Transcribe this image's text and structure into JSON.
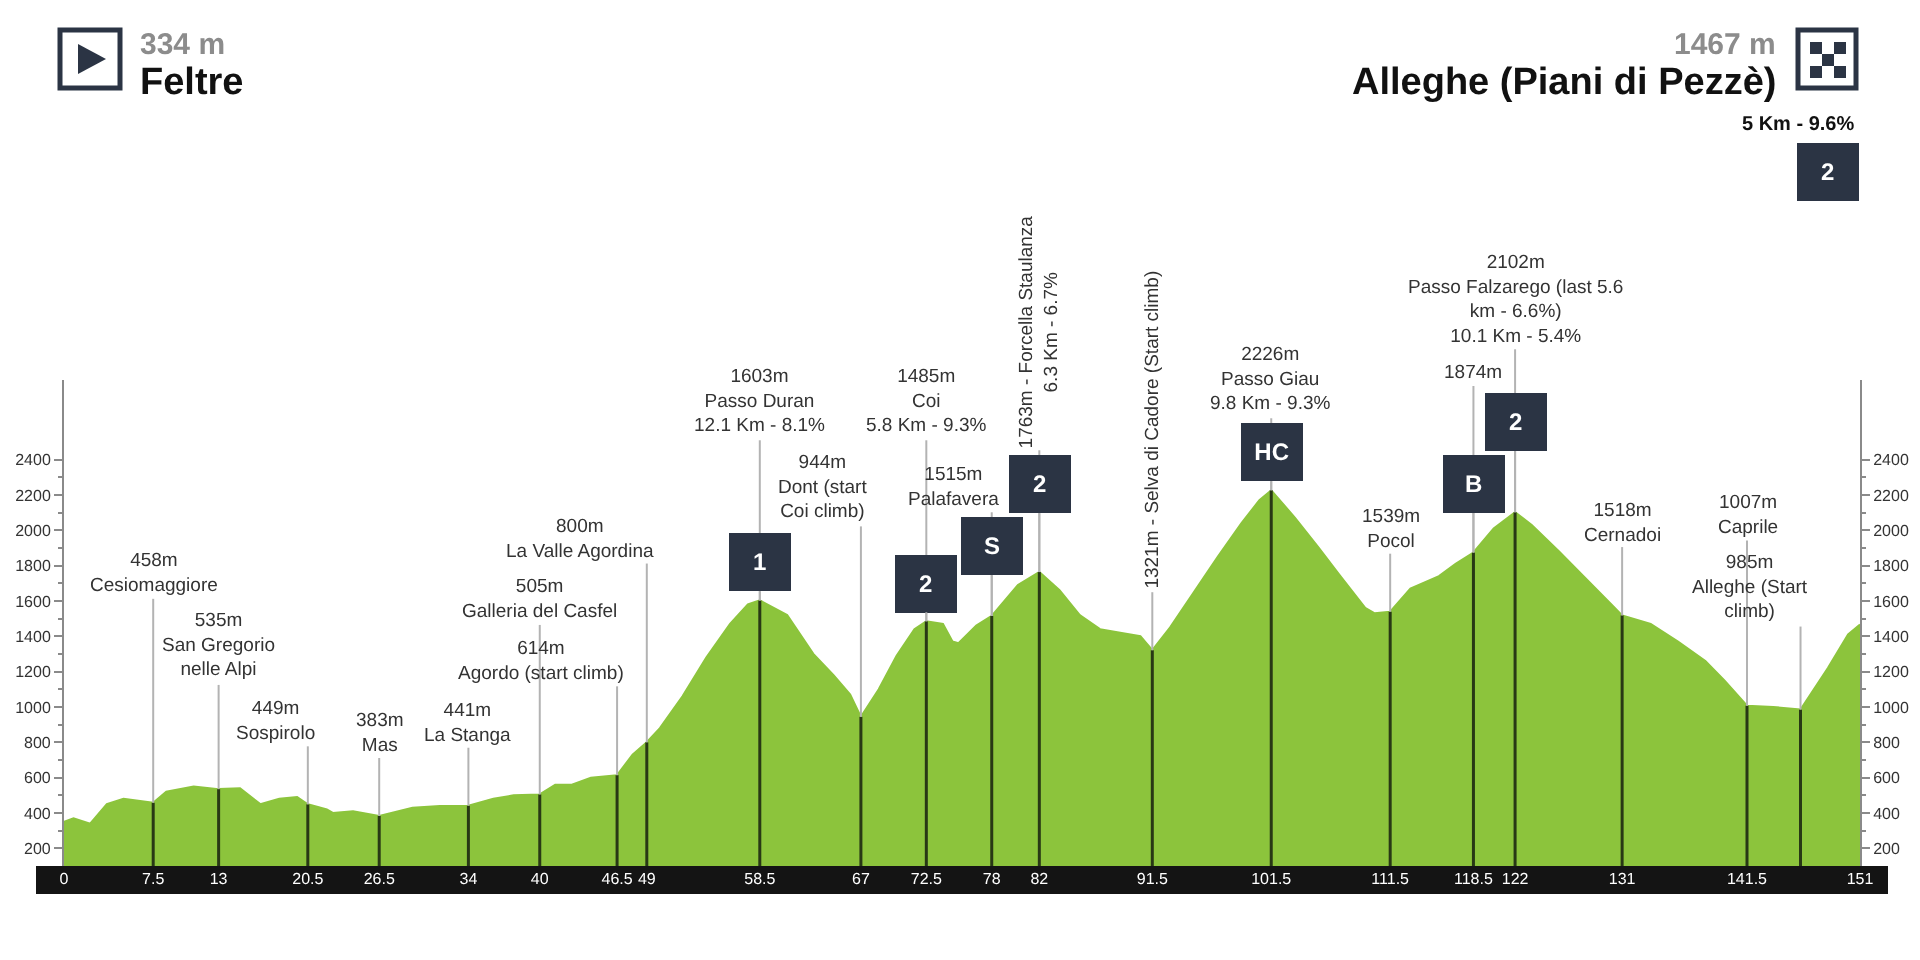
{
  "chart_data": {
    "type": "area",
    "color": "#8cc43c",
    "x": [
      0,
      0.8,
      2.2,
      3.6,
      5,
      7.5,
      8.6,
      10.9,
      13,
      14.8,
      16.5,
      18.1,
      19.6,
      20.5,
      22.1,
      22.6,
      24.3,
      26.5,
      29.3,
      31.6,
      34,
      36.1,
      37.8,
      40,
      41.3,
      42.7,
      44.3,
      46.5,
      47.8,
      49,
      50.1,
      52,
      54,
      56,
      57.5,
      58.5,
      60.8,
      63,
      64.7,
      66.1,
      67,
      68.5,
      70,
      71.5,
      72.5,
      73.9,
      74.7,
      75.2,
      76.7,
      78,
      80.2,
      82,
      83.7,
      85.4,
      87.1,
      88.8,
      90.5,
      91.5,
      93,
      95,
      97,
      99,
      100.5,
      101.5,
      103.5,
      105.5,
      107.2,
      109.4,
      110.2,
      111.5,
      113.2,
      115.6,
      117,
      118.5,
      120.2,
      122,
      123.4,
      125.7,
      127.9,
      130.1,
      131,
      133.4,
      135.7,
      138,
      139.6,
      141.5,
      143.7,
      146,
      148.3,
      150,
      151
    ],
    "values": [
      350,
      370,
      340,
      450,
      480,
      458,
      520,
      550,
      535,
      540,
      450,
      480,
      490,
      449,
      420,
      400,
      410,
      383,
      430,
      440,
      441,
      480,
      500,
      505,
      560,
      560,
      600,
      614,
      730,
      800,
      880,
      1060,
      1280,
      1470,
      1580,
      1603,
      1520,
      1300,
      1180,
      1070,
      944,
      1100,
      1290,
      1440,
      1485,
      1470,
      1370,
      1360,
      1460,
      1515,
      1690,
      1763,
      1660,
      1520,
      1440,
      1420,
      1400,
      1321,
      1450,
      1650,
      1850,
      2040,
      2170,
      2226,
      2070,
      1900,
      1750,
      1560,
      1530,
      1539,
      1670,
      1740,
      1810,
      1874,
      2010,
      2102,
      2030,
      1880,
      1730,
      1580,
      1518,
      1470,
      1370,
      1260,
      1150,
      1007,
      1000,
      985,
      1220,
      1410,
      1467
    ],
    "xlim": [
      0,
      151
    ],
    "xticks": [
      0,
      7.5,
      13,
      20.5,
      26.5,
      34,
      40,
      46.5,
      49,
      58.5,
      67,
      72.5,
      78,
      82,
      91.5,
      101.5,
      111.5,
      118.5,
      122,
      131,
      141.5,
      151
    ],
    "ylim": [
      100,
      2850
    ],
    "yticks": [
      200,
      {
        "value": 300,
        "label": null
      },
      400,
      {
        "value": 500,
        "label": null
      },
      600,
      {
        "value": 700,
        "label": null
      },
      800,
      {
        "value": 900,
        "label": null
      },
      1000,
      {
        "value": 1100,
        "label": null
      },
      1200,
      {
        "value": 1300,
        "label": null
      },
      1400,
      {
        "value": 1500,
        "label": null
      },
      1600,
      {
        "value": 1700,
        "label": null
      },
      1800,
      {
        "value": 1900,
        "label": null
      },
      2000,
      {
        "value": 2100,
        "label": null
      },
      2200,
      {
        "value": 2300,
        "label": null
      },
      2400
    ],
    "y2lim": [
      100,
      2850
    ],
    "y2ticks": [
      200,
      {
        "value": 300,
        "label": null
      },
      400,
      {
        "value": 500,
        "label": null
      },
      600,
      {
        "value": 700,
        "label": null
      },
      800,
      {
        "value": 900,
        "label": null
      },
      1000,
      {
        "value": 1100,
        "label": null
      },
      1200,
      {
        "value": 1300,
        "label": null
      },
      1400,
      {
        "value": 1500,
        "label": null
      },
      1600,
      {
        "value": 1700,
        "label": null
      },
      1800,
      {
        "value": 1900,
        "label": null
      },
      2000,
      {
        "value": 2100,
        "label": null
      },
      2200,
      {
        "value": 2300,
        "label": null
      },
      2400
    ],
    "ref_lines": [
      {
        "axis": "x",
        "value": 7.5,
        "label": "458m\nCesiomaggiore"
      },
      {
        "axis": "x",
        "value": 13,
        "label": "535m\nSan Gregorio\nnelle Alpi"
      },
      {
        "axis": "x",
        "value": 20.5,
        "label": "449m\nSospirolo"
      },
      {
        "axis": "x",
        "value": 26.5,
        "label": "383m\nMas"
      },
      {
        "axis": "x",
        "value": 34,
        "label": "441m\nLa Stanga"
      },
      {
        "axis": "x",
        "value": 40,
        "label": "505m\nGalleria del Casfel"
      },
      {
        "axis": "x",
        "value": 46.5,
        "label": "614m\nAgordo (start climb)"
      },
      {
        "axis": "x",
        "value": 49,
        "label": "800m\nLa Valle Agordina"
      },
      {
        "axis": "x",
        "value": 58.5,
        "label": "1603m\nPasso Duran\n12.1 Km - 8.1%"
      },
      {
        "axis": "x",
        "value": 67,
        "label": "944m\nDont (start\nCoi climb)"
      },
      {
        "axis": "x",
        "value": 72.5,
        "label": "1485m\nCoi\n5.8 Km - 9.3%"
      },
      {
        "axis": "x",
        "value": 78,
        "label": "1515m\nPalafavera"
      },
      {
        "axis": "x",
        "value": 82,
        "label": "1763m - Forcella Staulanza\n6.3 Km - 6.7%"
      },
      {
        "axis": "x",
        "value": 91.5,
        "label": "1321m - Selva di Cadore (Start climb)"
      },
      {
        "axis": "x",
        "value": 101.5,
        "label": "2226m\nPasso Giau\n9.8 Km - 9.3%"
      },
      {
        "axis": "x",
        "value": 111.5,
        "label": "1539m\nPocol"
      },
      {
        "axis": "x",
        "value": 118.5,
        "label": "1874m"
      },
      {
        "axis": "x",
        "value": 122,
        "label": "2102m\nPasso Falzarego (last 5.6\nkm - 6.6%)\n10.1 Km - 5.4%"
      },
      {
        "axis": "x",
        "value": 131,
        "label": "1518m\nCernadoi"
      },
      {
        "axis": "x",
        "value": 141.5,
        "label": "1007m\nCaprile"
      },
      {
        "axis": "x",
        "value": 146,
        "label": "985m\nAlleghe (Start\nclimb)"
      }
    ],
    "annotations": [
      "334 m",
      "Feltre",
      "1467 m",
      "Alleghe (Piani di Pezzè)",
      "5 Km - 9.6%",
      "2",
      {
        "text": "1",
        "x": 58.5,
        "y": 1603
      },
      {
        "text": "2",
        "x": 72.5,
        "y": 1485
      },
      {
        "text": "S",
        "x": 78,
        "y": 1515
      },
      {
        "text": "2",
        "x": 82,
        "y": 1763
      },
      {
        "text": "HC",
        "x": 101.5,
        "y": 2226
      },
      {
        "text": "B",
        "x": 118.5,
        "y": 1874
      },
      {
        "text": "2",
        "x": 122,
        "y": 2102
      }
    ]
  }
}
